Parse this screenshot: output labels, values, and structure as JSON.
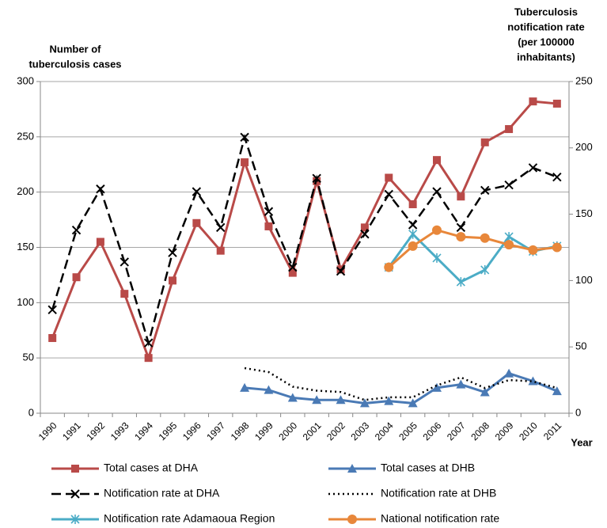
{
  "chart_data": {
    "type": "line",
    "y_label": [
      "Number of",
      "tuberculosis  cases"
    ],
    "y2_label": [
      "Tuberculosis",
      "notification rate",
      "(per 100000",
      "inhabitants)"
    ],
    "x_label": "Year",
    "categories": [
      "1990",
      "1991",
      "1992",
      "1993",
      "1994",
      "1995",
      "1996",
      "1997",
      "1998",
      "1999",
      "2000",
      "2001",
      "2002",
      "2003",
      "2004",
      "2005",
      "2006",
      "2007",
      "2008",
      "2009",
      "2010",
      "2011"
    ],
    "ylim": [
      0,
      300
    ],
    "yticks": [
      0,
      50,
      100,
      150,
      200,
      250,
      300
    ],
    "y2lim": [
      0,
      250
    ],
    "y2ticks": [
      0,
      50,
      100,
      150,
      200,
      250
    ],
    "grid": true,
    "series": [
      {
        "name": "Total cases at DHA",
        "color": "#b94a48",
        "marker": "square",
        "dash": "solid",
        "values": [
          68,
          123,
          155,
          108,
          50,
          120,
          172,
          147,
          227,
          169,
          127,
          210,
          130,
          168,
          213,
          189,
          229,
          196,
          245,
          257,
          282,
          280
        ]
      },
      {
        "name": "Total cases at DHB",
        "color": "#4a7ab5",
        "marker": "triangle",
        "dash": "solid",
        "values": [
          null,
          null,
          null,
          null,
          null,
          null,
          null,
          null,
          23,
          21,
          14,
          12,
          12,
          9,
          11,
          9,
          23,
          26,
          19,
          36,
          29,
          20
        ]
      },
      {
        "name": "Notification rate at DHA",
        "color": "#000000",
        "marker": "x",
        "dash": "dashed",
        "axis": "y2",
        "values": [
          78,
          138,
          169,
          114,
          53,
          121,
          167,
          140,
          208,
          152,
          110,
          177,
          107,
          135,
          165,
          142,
          167,
          140,
          168,
          172,
          185,
          178
        ]
      },
      {
        "name": "Notification rate at DHB",
        "color": "#000000",
        "marker": "none",
        "dash": "dotted",
        "axis": "y2",
        "values": [
          null,
          null,
          null,
          null,
          null,
          null,
          null,
          null,
          34,
          31,
          20,
          17,
          16,
          10,
          12,
          12,
          21,
          27,
          19,
          25,
          24,
          19
        ]
      },
      {
        "name": "Notification rate Adamaoua Region",
        "color": "#4bacc6",
        "marker": "asterisk",
        "dash": "solid",
        "axis": "y2",
        "values": [
          null,
          null,
          null,
          null,
          null,
          null,
          null,
          null,
          null,
          null,
          null,
          null,
          null,
          null,
          110,
          135,
          117,
          99,
          108,
          133,
          122,
          126
        ]
      },
      {
        "name": "National notification rate",
        "color": "#e8873a",
        "marker": "circle",
        "dash": "solid",
        "axis": "y2",
        "values": [
          null,
          null,
          null,
          null,
          null,
          null,
          null,
          null,
          null,
          null,
          null,
          null,
          null,
          null,
          110,
          126,
          138,
          133,
          132,
          127,
          123,
          125
        ]
      }
    ]
  }
}
